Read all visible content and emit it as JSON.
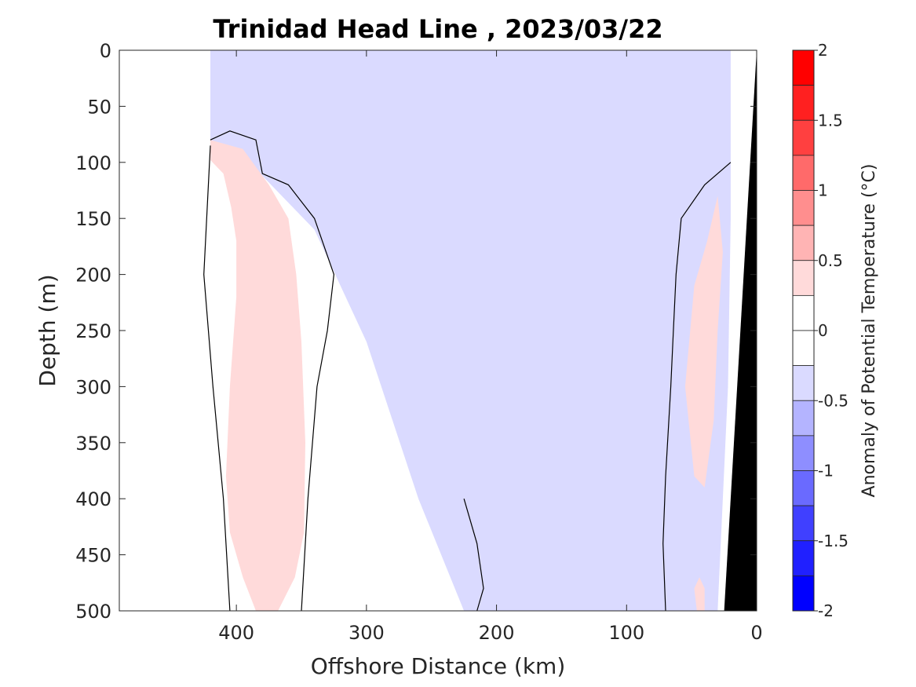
{
  "chart_data": {
    "type": "heatmap",
    "title": "Trinidad Head Line , 2023/03/22",
    "xlabel": "Offshore Distance (km)",
    "ylabel": "Depth (m)",
    "xlim": [
      490,
      0
    ],
    "ylim": [
      0,
      500
    ],
    "x_direction": "reversed",
    "y_direction": "reversed (depth increases downward)",
    "x_ticks": [
      400,
      300,
      200,
      100,
      0
    ],
    "y_ticks": [
      0,
      50,
      100,
      150,
      200,
      250,
      300,
      350,
      400,
      450,
      500
    ],
    "colorbar": {
      "label": "Anomaly of Potential Temperature (°C)",
      "range": [
        -2,
        2
      ],
      "ticks": [
        2,
        1.5,
        1,
        0.5,
        0,
        -0.5,
        -1,
        -1.5,
        -2
      ],
      "levels": [
        {
          "from": 1.75,
          "to": 2.0,
          "color": "#ff0000"
        },
        {
          "from": 1.5,
          "to": 1.75,
          "color": "#ff2020"
        },
        {
          "from": 1.25,
          "to": 1.5,
          "color": "#ff4040"
        },
        {
          "from": 1.0,
          "to": 1.25,
          "color": "#ff6a6a"
        },
        {
          "from": 0.75,
          "to": 1.0,
          "color": "#ff8e8e"
        },
        {
          "from": 0.5,
          "to": 0.75,
          "color": "#ffb4b4"
        },
        {
          "from": 0.25,
          "to": 0.5,
          "color": "#ffdada"
        },
        {
          "from": 0.0,
          "to": 0.25,
          "color": "#ffffff"
        },
        {
          "from": -0.25,
          "to": 0.0,
          "color": "#ffffff"
        },
        {
          "from": -0.5,
          "to": -0.25,
          "color": "#dadaff"
        },
        {
          "from": -0.75,
          "to": -0.5,
          "color": "#b4b4ff"
        },
        {
          "from": -1.0,
          "to": -0.75,
          "color": "#8e8eff"
        },
        {
          "from": -1.25,
          "to": -1.0,
          "color": "#6a6aff"
        },
        {
          "from": -1.5,
          "to": -1.25,
          "color": "#4040ff"
        },
        {
          "from": -1.75,
          "to": -1.5,
          "color": "#2020ff"
        },
        {
          "from": -2.0,
          "to": -1.75,
          "color": "#0000ff"
        }
      ]
    },
    "regions": [
      {
        "level": -0.25,
        "color": "#dadaff",
        "points": [
          [
            420,
            0
          ],
          [
            20,
            0
          ],
          [
            20,
            150
          ],
          [
            22,
            300
          ],
          [
            30,
            500
          ],
          [
            225,
            500
          ],
          [
            260,
            400
          ],
          [
            300,
            260
          ],
          [
            340,
            160
          ],
          [
            390,
            100
          ],
          [
            420,
            80
          ]
        ]
      },
      {
        "level": 0.25,
        "color": "#ffdada",
        "points": [
          [
            420,
            80
          ],
          [
            395,
            88
          ],
          [
            375,
            120
          ],
          [
            360,
            150
          ],
          [
            354,
            200
          ],
          [
            350,
            260
          ],
          [
            347,
            350
          ],
          [
            348,
            430
          ],
          [
            355,
            470
          ],
          [
            368,
            500
          ],
          [
            385,
            500
          ],
          [
            395,
            470
          ],
          [
            405,
            430
          ],
          [
            408,
            380
          ],
          [
            405,
            300
          ],
          [
            400,
            220
          ],
          [
            400,
            170
          ],
          [
            404,
            140
          ],
          [
            410,
            110
          ],
          [
            420,
            98
          ]
        ]
      },
      {
        "level": 0.25,
        "color": "#ffdada",
        "points": [
          [
            30,
            130
          ],
          [
            38,
            170
          ],
          [
            48,
            210
          ],
          [
            55,
            300
          ],
          [
            48,
            380
          ],
          [
            40,
            390
          ],
          [
            33,
            330
          ],
          [
            30,
            250
          ],
          [
            26,
            180
          ]
        ]
      },
      {
        "level": 0.25,
        "color": "#ffdada",
        "points": [
          [
            44,
            470
          ],
          [
            48,
            480
          ],
          [
            46,
            500
          ],
          [
            40,
            500
          ],
          [
            40,
            480
          ]
        ]
      }
    ],
    "contours": [
      {
        "level": 0,
        "points": [
          [
            420,
            80
          ],
          [
            405,
            72
          ],
          [
            385,
            80
          ],
          [
            380,
            110
          ],
          [
            360,
            120
          ],
          [
            340,
            150
          ],
          [
            325,
            200
          ],
          [
            330,
            250
          ],
          [
            338,
            300
          ],
          [
            345,
            400
          ],
          [
            350,
            500
          ]
        ]
      },
      {
        "level": 0,
        "points": [
          [
            420,
            85
          ],
          [
            425,
            200
          ],
          [
            418,
            300
          ],
          [
            410,
            400
          ],
          [
            405,
            500
          ]
        ]
      },
      {
        "level": 0,
        "points": [
          [
            70,
            500
          ],
          [
            72,
            440
          ],
          [
            70,
            380
          ],
          [
            66,
            300
          ],
          [
            64,
            250
          ],
          [
            62,
            200
          ],
          [
            58,
            150
          ],
          [
            40,
            120
          ],
          [
            20,
            100
          ]
        ]
      },
      {
        "level": 0,
        "points": [
          [
            225,
            400
          ],
          [
            215,
            440
          ],
          [
            210,
            480
          ],
          [
            215,
            500
          ]
        ]
      }
    ],
    "bathymetry": {
      "color": "#000000",
      "points": [
        [
          0,
          0
        ],
        [
          25,
          500
        ],
        [
          0,
          500
        ]
      ]
    }
  }
}
